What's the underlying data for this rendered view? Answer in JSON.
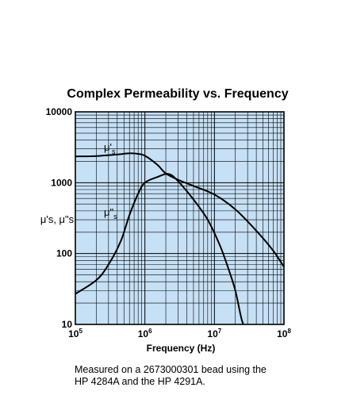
{
  "chart_data": {
    "type": "line",
    "title": "Complex Permeability vs. Frequency",
    "xlabel": "Frequency (Hz)",
    "ylabel": "μ's, μ\"s",
    "x_scale": "log",
    "y_scale": "log",
    "xlim": [
      100000,
      100000000
    ],
    "ylim": [
      10,
      10000
    ],
    "x_ticks": [
      {
        "value": 100000,
        "base": "10",
        "exp": "5"
      },
      {
        "value": 1000000,
        "base": "10",
        "exp": "6"
      },
      {
        "value": 10000000,
        "base": "10",
        "exp": "7"
      },
      {
        "value": 100000000,
        "base": "10",
        "exp": "8"
      }
    ],
    "y_ticks": [
      {
        "value": 10,
        "label": "10"
      },
      {
        "value": 100,
        "label": "100"
      },
      {
        "value": 1000,
        "label": "1000"
      },
      {
        "value": 10000,
        "label": "10000"
      }
    ],
    "grid": true,
    "background_color": "#c6e0f5",
    "line_color": "#000000",
    "series": [
      {
        "name": "μ's",
        "label_main": "μ'",
        "label_sub": "s",
        "points": [
          [
            100000,
            2350
          ],
          [
            200000,
            2380
          ],
          [
            400000,
            2500
          ],
          [
            600000,
            2600
          ],
          [
            800000,
            2550
          ],
          [
            1000000,
            2400
          ],
          [
            1500000,
            1800
          ],
          [
            2000000,
            1350
          ],
          [
            3000000,
            1100
          ],
          [
            5000000,
            900
          ],
          [
            10000000,
            680
          ],
          [
            20000000,
            420
          ],
          [
            40000000,
            210
          ],
          [
            70000000,
            110
          ],
          [
            100000000,
            65
          ]
        ]
      },
      {
        "name": "μ\"s",
        "label_main": "μ\"",
        "label_sub": "s",
        "points": [
          [
            100000,
            27
          ],
          [
            200000,
            42
          ],
          [
            300000,
            70
          ],
          [
            450000,
            150
          ],
          [
            600000,
            350
          ],
          [
            800000,
            700
          ],
          [
            1000000,
            1000
          ],
          [
            1500000,
            1200
          ],
          [
            2200000,
            1330
          ],
          [
            3000000,
            1050
          ],
          [
            5000000,
            580
          ],
          [
            8000000,
            300
          ],
          [
            12000000,
            130
          ],
          [
            16000000,
            60
          ],
          [
            20000000,
            30
          ],
          [
            24000000,
            13
          ],
          [
            26000000,
            10
          ]
        ]
      }
    ]
  },
  "caption": {
    "line1": "Measured on a 2673000301 bead using the",
    "line2": "HP 4284A and the HP 4291A."
  }
}
